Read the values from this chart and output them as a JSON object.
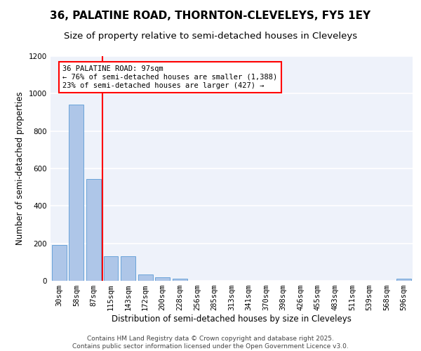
{
  "title_line1": "36, PALATINE ROAD, THORNTON-CLEVELEYS, FY5 1EY",
  "title_line2": "Size of property relative to semi-detached houses in Cleveleys",
  "xlabel": "Distribution of semi-detached houses by size in Cleveleys",
  "ylabel": "Number of semi-detached properties",
  "categories": [
    "30sqm",
    "58sqm",
    "87sqm",
    "115sqm",
    "143sqm",
    "172sqm",
    "200sqm",
    "228sqm",
    "256sqm",
    "285sqm",
    "313sqm",
    "341sqm",
    "370sqm",
    "398sqm",
    "426sqm",
    "455sqm",
    "483sqm",
    "511sqm",
    "539sqm",
    "568sqm",
    "596sqm"
  ],
  "values": [
    190,
    940,
    545,
    130,
    130,
    35,
    20,
    10,
    0,
    0,
    0,
    0,
    0,
    0,
    0,
    0,
    0,
    0,
    0,
    0,
    10
  ],
  "bar_color": "#aec6e8",
  "bar_edge_color": "#5b9bd5",
  "red_line_x": 2.5,
  "annotation_text": "36 PALATINE ROAD: 97sqm\n← 76% of semi-detached houses are smaller (1,388)\n23% of semi-detached houses are larger (427) →",
  "ylim": [
    0,
    1200
  ],
  "yticks": [
    0,
    200,
    400,
    600,
    800,
    1000,
    1200
  ],
  "footer_line1": "Contains HM Land Registry data © Crown copyright and database right 2025.",
  "footer_line2": "Contains public sector information licensed under the Open Government Licence v3.0.",
  "bg_color": "#eef2fa",
  "grid_color": "#ffffff",
  "title_fontsize": 11,
  "subtitle_fontsize": 9.5,
  "axis_label_fontsize": 8.5,
  "tick_fontsize": 7.5,
  "footer_fontsize": 6.5,
  "annotation_fontsize": 7.5
}
